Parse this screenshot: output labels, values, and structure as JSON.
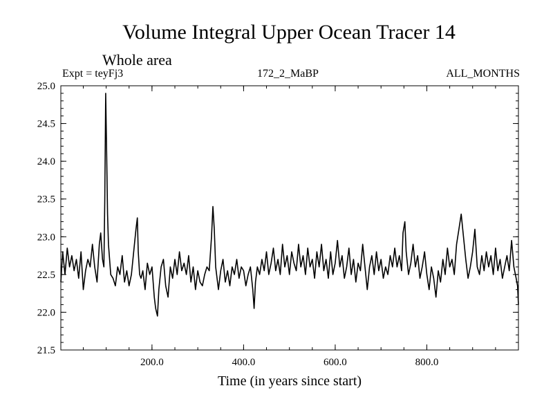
{
  "chart_data": {
    "type": "line",
    "title": "Volume Integral Upper Ocean Tracer 14",
    "subtitle": "Whole area",
    "experiment_label": "Expt = teyFj3",
    "run_label": "172_2_MaBP",
    "months_label": "ALL_MONTHS",
    "xlabel": "Time (in years since start)",
    "ylabel": "",
    "xlim": [
      1,
      1000
    ],
    "ylim": [
      21.5,
      25.0
    ],
    "x_ticks": [
      200,
      400,
      600,
      800
    ],
    "x_tick_labels": [
      "200.0",
      "400.0",
      "600.0",
      "800.0"
    ],
    "y_ticks": [
      21.5,
      22.0,
      22.5,
      23.0,
      23.5,
      24.0,
      24.5,
      25.0
    ],
    "y_tick_labels": [
      "21.5",
      "22.0",
      "22.5",
      "23.0",
      "23.5",
      "24.0",
      "24.5",
      "25.0"
    ],
    "grid": false,
    "series": [
      {
        "name": "Upper Ocean Tracer 14",
        "x": [
          1,
          5,
          10,
          15,
          20,
          25,
          30,
          35,
          40,
          45,
          50,
          55,
          60,
          65,
          70,
          75,
          80,
          85,
          88,
          92,
          95,
          97,
          99,
          101,
          103,
          105,
          110,
          115,
          120,
          125,
          130,
          135,
          140,
          145,
          150,
          155,
          160,
          165,
          168,
          170,
          173,
          176,
          180,
          185,
          190,
          195,
          200,
          205,
          208,
          212,
          215,
          220,
          225,
          230,
          235,
          240,
          245,
          250,
          255,
          260,
          265,
          270,
          275,
          280,
          285,
          290,
          295,
          300,
          305,
          310,
          315,
          320,
          325,
          330,
          333,
          336,
          339,
          342,
          345,
          350,
          355,
          360,
          365,
          370,
          375,
          380,
          385,
          390,
          395,
          400,
          405,
          410,
          415,
          420,
          423,
          426,
          430,
          435,
          440,
          445,
          450,
          455,
          460,
          465,
          470,
          475,
          480,
          485,
          490,
          495,
          500,
          505,
          510,
          515,
          520,
          525,
          530,
          535,
          540,
          545,
          550,
          555,
          560,
          565,
          570,
          575,
          580,
          585,
          590,
          595,
          600,
          605,
          610,
          615,
          620,
          625,
          630,
          635,
          640,
          645,
          650,
          655,
          660,
          665,
          670,
          675,
          680,
          685,
          690,
          695,
          700,
          705,
          710,
          715,
          720,
          725,
          730,
          735,
          740,
          745,
          748,
          752,
          755,
          760,
          765,
          770,
          775,
          780,
          785,
          790,
          795,
          800,
          805,
          810,
          815,
          820,
          825,
          830,
          835,
          840,
          845,
          850,
          855,
          860,
          865,
          870,
          875,
          880,
          885,
          890,
          895,
          900,
          905,
          910,
          915,
          920,
          925,
          930,
          935,
          940,
          945,
          950,
          955,
          960,
          965,
          970,
          975,
          980,
          985,
          990,
          995,
          998,
          1000
        ],
        "values": [
          22.4,
          22.8,
          22.5,
          22.85,
          22.6,
          22.75,
          22.55,
          22.7,
          22.45,
          22.8,
          22.3,
          22.55,
          22.7,
          22.6,
          22.9,
          22.6,
          22.4,
          22.9,
          23.05,
          22.7,
          22.6,
          23.5,
          24.9,
          24.1,
          23.3,
          22.9,
          22.5,
          22.45,
          22.35,
          22.6,
          22.5,
          22.75,
          22.4,
          22.55,
          22.35,
          22.5,
          22.8,
          23.1,
          23.25,
          22.8,
          22.5,
          22.45,
          22.55,
          22.3,
          22.65,
          22.5,
          22.6,
          22.2,
          22.05,
          21.95,
          22.3,
          22.6,
          22.7,
          22.35,
          22.2,
          22.6,
          22.45,
          22.7,
          22.5,
          22.8,
          22.55,
          22.65,
          22.5,
          22.75,
          22.4,
          22.6,
          22.3,
          22.55,
          22.4,
          22.35,
          22.5,
          22.6,
          22.55,
          23.0,
          23.4,
          23.1,
          22.6,
          22.45,
          22.3,
          22.55,
          22.7,
          22.4,
          22.55,
          22.35,
          22.6,
          22.5,
          22.7,
          22.45,
          22.6,
          22.55,
          22.35,
          22.5,
          22.6,
          22.3,
          22.05,
          22.4,
          22.6,
          22.5,
          22.7,
          22.55,
          22.8,
          22.5,
          22.65,
          22.85,
          22.55,
          22.7,
          22.5,
          22.9,
          22.6,
          22.75,
          22.5,
          22.8,
          22.65,
          22.55,
          22.9,
          22.6,
          22.75,
          22.5,
          22.85,
          22.6,
          22.7,
          22.45,
          22.8,
          22.6,
          22.9,
          22.55,
          22.7,
          22.45,
          22.8,
          22.5,
          22.65,
          22.95,
          22.6,
          22.75,
          22.45,
          22.6,
          22.85,
          22.5,
          22.7,
          22.4,
          22.65,
          22.55,
          22.9,
          22.6,
          22.3,
          22.6,
          22.75,
          22.5,
          22.8,
          22.55,
          22.7,
          22.45,
          22.6,
          22.5,
          22.75,
          22.6,
          22.85,
          22.6,
          22.75,
          22.55,
          23.05,
          23.2,
          22.8,
          22.5,
          22.65,
          22.9,
          22.6,
          22.75,
          22.45,
          22.6,
          22.8,
          22.5,
          22.3,
          22.6,
          22.45,
          22.2,
          22.55,
          22.4,
          22.7,
          22.5,
          22.85,
          22.6,
          22.7,
          22.5,
          22.9,
          23.1,
          23.3,
          23.0,
          22.7,
          22.45,
          22.6,
          22.8,
          23.1,
          22.6,
          22.5,
          22.75,
          22.55,
          22.8,
          22.6,
          22.75,
          22.5,
          22.85,
          22.55,
          22.7,
          22.45,
          22.6,
          22.75,
          22.55,
          22.95,
          22.6,
          22.45,
          22.35,
          22.1
        ]
      }
    ]
  }
}
